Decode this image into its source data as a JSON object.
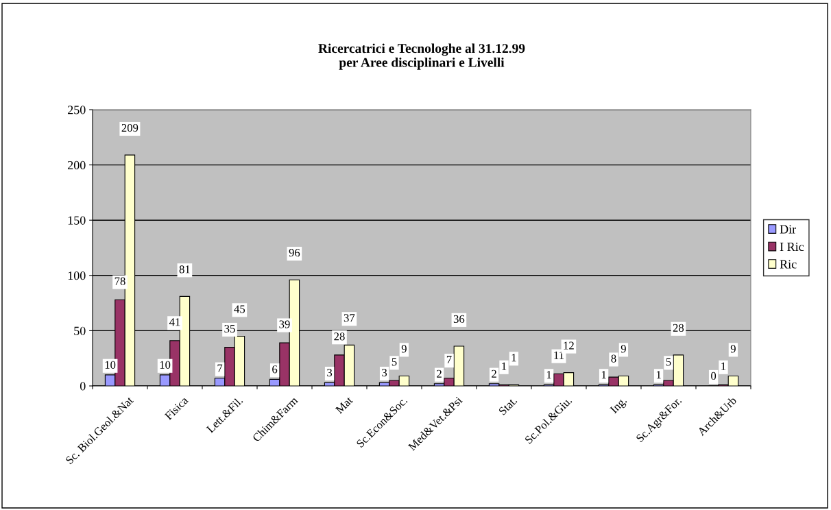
{
  "chart_data": {
    "type": "bar",
    "title": "Ricercatrici e Tecnologhe al 31.12.99\nper Aree disciplinari e Livelli",
    "categories": [
      "Sc. Biol.Geol.&Nat",
      "Fisica",
      "Lett.&Fil.",
      "Chim&Farm",
      "Mat",
      "Sc.Econ&Soc.",
      "Med&Vet.&Psi",
      "Stat.",
      "Sc.Pol.&Giu.",
      "Ing.",
      "Sc.Agr&For.",
      "Arch&Urb"
    ],
    "series": [
      {
        "name": "Dir",
        "color": "#9999ff",
        "values": [
          10,
          10,
          7,
          6,
          3,
          3,
          2,
          2,
          1,
          1,
          1,
          0
        ]
      },
      {
        "name": "I Ric",
        "color": "#993366",
        "values": [
          78,
          41,
          35,
          39,
          28,
          5,
          7,
          1,
          11,
          8,
          5,
          1
        ]
      },
      {
        "name": "Ric",
        "color": "#ffffcc",
        "values": [
          209,
          81,
          45,
          96,
          37,
          9,
          36,
          1,
          12,
          9,
          28,
          9
        ]
      }
    ],
    "ylim": [
      0,
      250
    ],
    "yticks": [
      0,
      50,
      100,
      150,
      200,
      250
    ],
    "grid": "y",
    "legend": "right",
    "data_labels": true
  }
}
